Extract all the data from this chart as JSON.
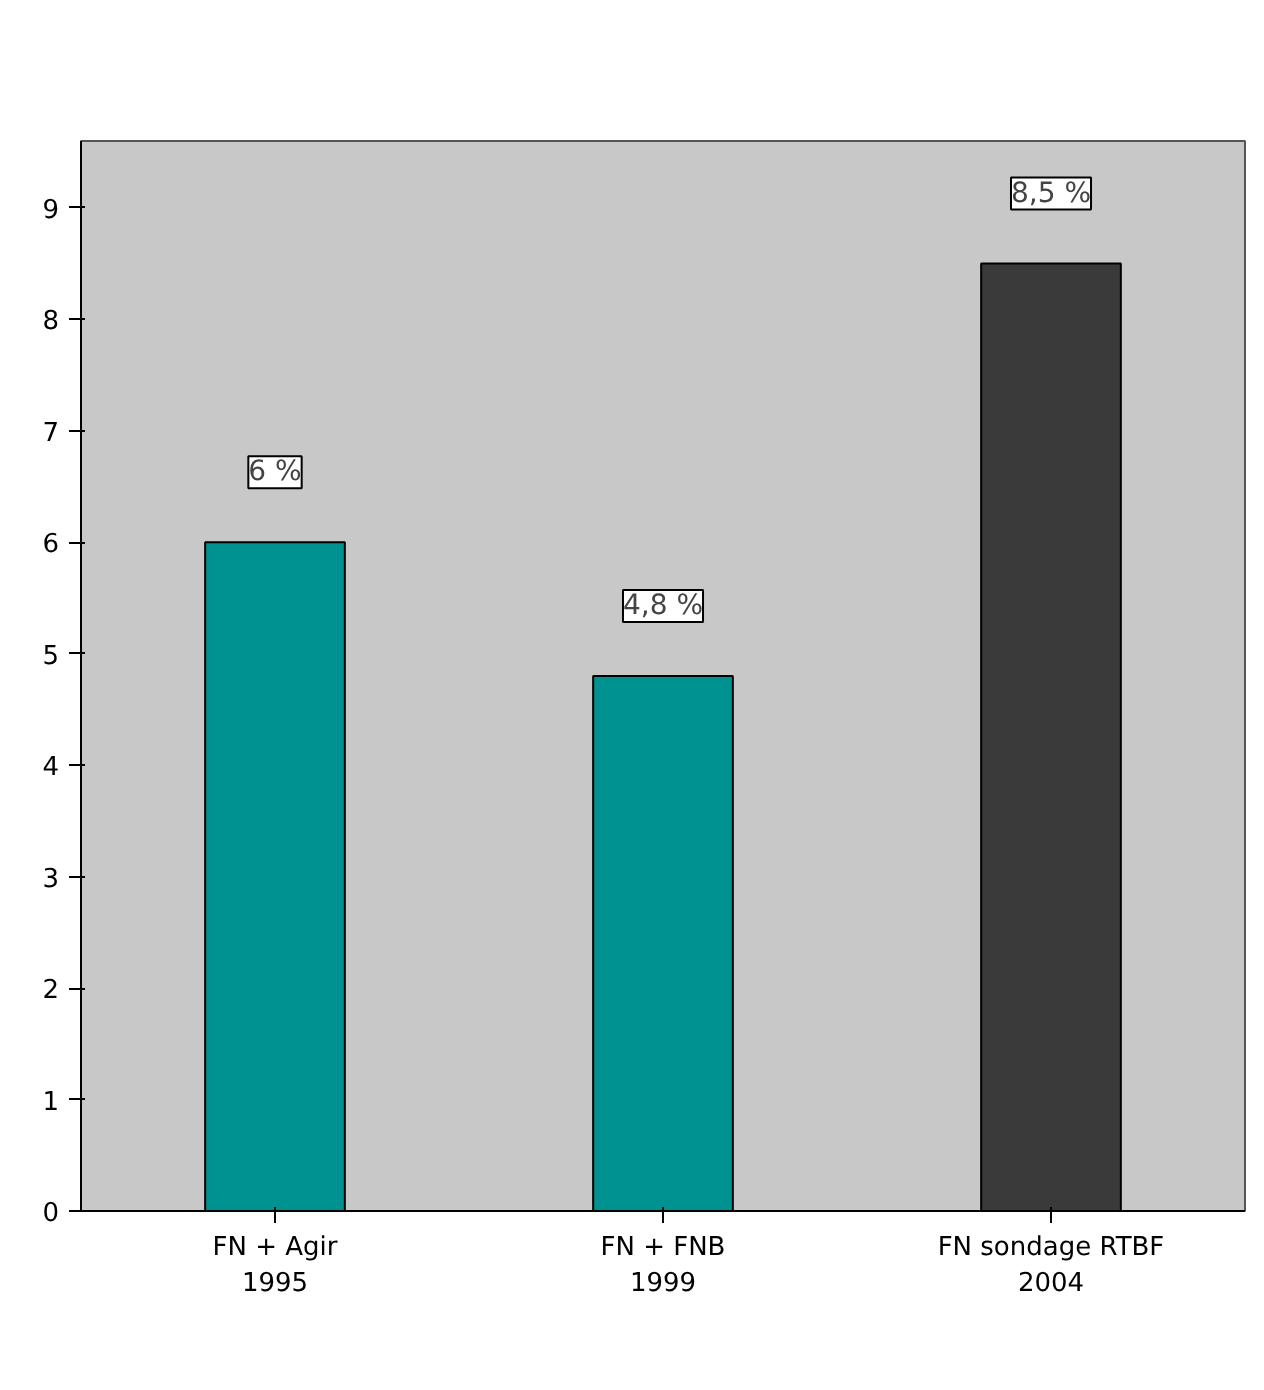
{
  "chart_data": {
    "type": "bar",
    "categories": [
      "FN + Agir\n1995",
      "FN + FNB\n1999",
      "FN sondage RTBF\n2004"
    ],
    "values": [
      6,
      4.8,
      8.5
    ],
    "colors": [
      "#009191",
      "#009191",
      "#3a3a3a"
    ],
    "value_labels": [
      "6 %",
      "4,8 %",
      "8,5 %"
    ],
    "ylim": [
      0,
      9.6
    ],
    "yticks": [
      0,
      1,
      2,
      3,
      4,
      5,
      6,
      7,
      8,
      9
    ],
    "grid": false
  }
}
